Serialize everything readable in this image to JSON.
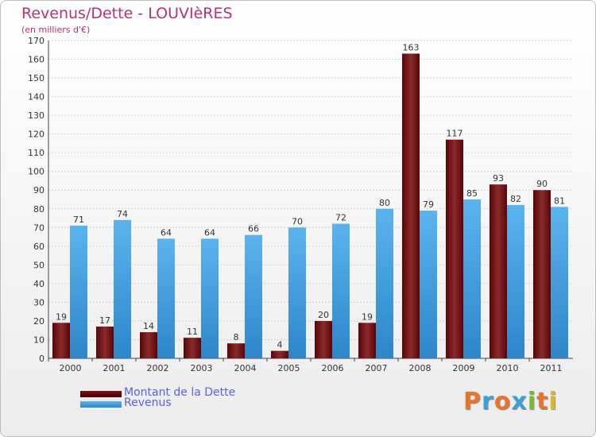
{
  "chart_data": {
    "type": "bar",
    "title": "Revenus/Dette - LOUVIèRES",
    "subtitle": "(en milliers d'€)",
    "categories": [
      "2000",
      "2001",
      "2002",
      "2003",
      "2004",
      "2005",
      "2006",
      "2007",
      "2008",
      "2009",
      "2010",
      "2011"
    ],
    "series": [
      {
        "name": "Montant de la Dette",
        "color": "#7a0f12",
        "values": [
          19,
          17,
          14,
          11,
          8,
          4,
          20,
          19,
          163,
          117,
          93,
          90
        ]
      },
      {
        "name": "Revenus",
        "color": "#3e9ad9",
        "values": [
          71,
          74,
          64,
          64,
          66,
          70,
          72,
          80,
          79,
          85,
          82,
          81
        ]
      }
    ],
    "ylim": [
      0,
      170
    ],
    "yticks": [
      0,
      10,
      20,
      30,
      40,
      50,
      60,
      70,
      80,
      90,
      100,
      110,
      120,
      130,
      140,
      150,
      160,
      170
    ],
    "grid": true,
    "legend_position": "bottom-left"
  },
  "logo": {
    "text": "Proxiti",
    "letter_colors": [
      "#e8732a",
      "#3aa0d8",
      "#e8732a",
      "#3aa0d8",
      "#7ab834",
      "#e8732a",
      "#d9b82a"
    ]
  }
}
